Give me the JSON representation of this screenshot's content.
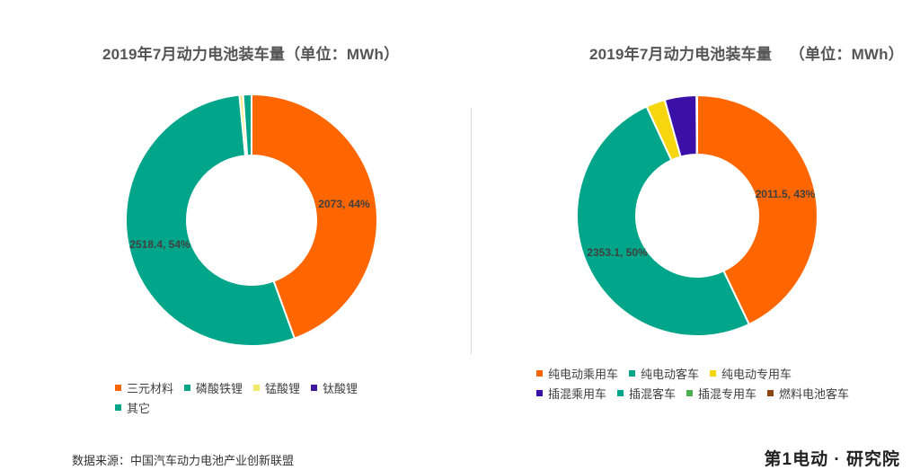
{
  "chart_data": [
    {
      "type": "pie",
      "title": "2019年7月动力电池装车量（单位：MWh）",
      "donut": true,
      "legend_position": "bottom",
      "slices": [
        {
          "name": "三元材料",
          "value": 2073,
          "percent": 44,
          "label": "2073, 44%",
          "color": "#FF6600"
        },
        {
          "name": "磷酸铁锂",
          "value": 2518.4,
          "percent": 54,
          "label": "2518.4, 54%",
          "color": "#00A58A"
        },
        {
          "name": "锰酸锂",
          "value": 20,
          "percent": 0.4,
          "label": "",
          "color": "#F2E86A"
        },
        {
          "name": "钛酸锂",
          "value": 2,
          "percent": 0.04,
          "label": "",
          "color": "#3F1A9E"
        },
        {
          "name": "其它",
          "value": 50,
          "percent": 1.1,
          "label": "",
          "color": "#00A58A"
        }
      ]
    },
    {
      "type": "pie",
      "title": "2019年7月动力电池装车量    （单位：MWh）",
      "donut": true,
      "legend_position": "bottom",
      "slices": [
        {
          "name": "纯电动乘用车",
          "value": 2011.5,
          "percent": 43,
          "label": "2011.5, 43%",
          "color": "#FF6600"
        },
        {
          "name": "纯电动客车",
          "value": 2353.1,
          "percent": 50,
          "label": "2353.1, 50%",
          "color": "#00A58A"
        },
        {
          "name": "纯电动专用车",
          "value": 120,
          "percent": 2.6,
          "label": "",
          "color": "#F5D60F"
        },
        {
          "name": "插混乘用车",
          "value": 200,
          "percent": 4.3,
          "label": "",
          "color": "#3B10A8"
        },
        {
          "name": "插混客车",
          "value": 2,
          "percent": 0.04,
          "label": "",
          "color": "#00A58A"
        },
        {
          "name": "插混专用车",
          "value": 1,
          "percent": 0.02,
          "label": "",
          "color": "#4CAF50"
        },
        {
          "name": "燃料电池客车",
          "value": 1,
          "percent": 0.02,
          "label": "",
          "color": "#8B4513"
        }
      ]
    }
  ],
  "footer": {
    "source": "数据来源：中国汽车动力电池产业创新联盟",
    "logo": "第1电动 · 研究院"
  }
}
